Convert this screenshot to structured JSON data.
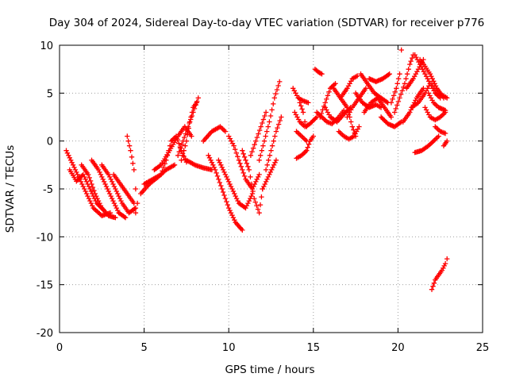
{
  "chart_data": {
    "type": "scatter",
    "title": "Day 304 of 2024, Sidereal Day-to-day VTEC variation (SDTVAR) for receiver p776",
    "xlabel": "GPS time / hours",
    "ylabel": "SDTVAR / TECUs",
    "xlim": [
      0,
      25
    ],
    "ylim": [
      -20,
      10
    ],
    "xticks": [
      0,
      5,
      10,
      15,
      20,
      25
    ],
    "yticks": [
      -20,
      -15,
      -10,
      -5,
      0,
      5,
      10
    ],
    "grid": true,
    "marker": "+",
    "color": "#ff0000",
    "series": [
      {
        "tracks": [
          [
            [
              0.4,
              -1.0
            ],
            [
              0.8,
              -2.5
            ],
            [
              1.2,
              -4.0
            ],
            [
              1.6,
              -5.5
            ],
            [
              2.0,
              -7.0
            ],
            [
              2.5,
              -7.8
            ],
            [
              3.0,
              -7.5
            ]
          ],
          [
            [
              0.6,
              -3.0
            ],
            [
              1.0,
              -4.2
            ],
            [
              1.4,
              -3.5
            ],
            [
              1.8,
              -5.0
            ],
            [
              2.2,
              -6.5
            ],
            [
              2.6,
              -7.2
            ]
          ],
          [
            [
              1.3,
              -2.5
            ],
            [
              1.7,
              -3.5
            ],
            [
              2.1,
              -5.5
            ],
            [
              2.5,
              -7.0
            ],
            [
              2.9,
              -7.8
            ],
            [
              3.3,
              -8.0
            ]
          ],
          [
            [
              1.9,
              -2.0
            ],
            [
              2.3,
              -3.0
            ],
            [
              2.7,
              -4.5
            ],
            [
              3.1,
              -6.0
            ],
            [
              3.5,
              -7.5
            ],
            [
              3.9,
              -8.0
            ]
          ],
          [
            [
              2.5,
              -2.5
            ],
            [
              2.9,
              -3.5
            ],
            [
              3.3,
              -5.0
            ],
            [
              3.7,
              -6.5
            ],
            [
              4.1,
              -7.5
            ],
            [
              4.5,
              -7.0
            ]
          ],
          [
            [
              3.2,
              -3.5
            ],
            [
              3.6,
              -4.5
            ],
            [
              4.0,
              -5.5
            ],
            [
              4.4,
              -6.5
            ]
          ],
          [
            [
              4.0,
              0.5
            ],
            [
              4.2,
              -1.0
            ],
            [
              4.4,
              -3.0
            ],
            [
              4.5,
              -5.0
            ],
            [
              4.6,
              -6.5
            ],
            [
              4.5,
              -7.5
            ]
          ]
        ]
      },
      {
        "tracks": [
          [
            [
              4.8,
              -5.5
            ],
            [
              5.3,
              -4.5
            ],
            [
              5.8,
              -3.8
            ],
            [
              6.3,
              -3.0
            ],
            [
              6.8,
              -2.5
            ]
          ],
          [
            [
              5.0,
              -4.5
            ],
            [
              5.5,
              -4.0
            ],
            [
              6.0,
              -3.5
            ],
            [
              6.3,
              -2.0
            ],
            [
              6.6,
              0.0
            ],
            [
              6.9,
              0.5
            ],
            [
              7.2,
              -1.0
            ],
            [
              7.5,
              -2.2
            ]
          ],
          [
            [
              5.6,
              -3.0
            ],
            [
              6.0,
              -2.5
            ],
            [
              6.5,
              -1.0
            ],
            [
              7.0,
              0.5
            ],
            [
              7.4,
              1.5
            ],
            [
              7.8,
              0.5
            ]
          ],
          [
            [
              7.0,
              -1.5
            ],
            [
              7.3,
              0.0
            ],
            [
              7.6,
              1.5
            ],
            [
              7.9,
              3.0
            ],
            [
              8.2,
              4.5
            ]
          ],
          [
            [
              7.2,
              -2.0
            ],
            [
              7.5,
              0.0
            ],
            [
              7.7,
              2.0
            ],
            [
              7.9,
              3.5
            ],
            [
              8.1,
              4.0
            ]
          ],
          [
            [
              7.5,
              -2.0
            ],
            [
              8.0,
              -2.5
            ],
            [
              8.5,
              -2.8
            ],
            [
              9.0,
              -3.0
            ]
          ],
          [
            [
              8.5,
              0.0
            ],
            [
              9.0,
              1.0
            ],
            [
              9.5,
              1.5
            ],
            [
              9.8,
              1.0
            ]
          ],
          [
            [
              8.8,
              -1.5
            ],
            [
              9.2,
              -3.0
            ],
            [
              9.6,
              -5.0
            ],
            [
              10.0,
              -7.0
            ],
            [
              10.4,
              -8.5
            ],
            [
              10.8,
              -9.3
            ]
          ],
          [
            [
              9.4,
              -2.0
            ],
            [
              9.8,
              -3.5
            ],
            [
              10.2,
              -5.0
            ],
            [
              10.6,
              -6.5
            ],
            [
              11.0,
              -7.0
            ],
            [
              11.4,
              -5.5
            ]
          ],
          [
            [
              10.0,
              0.5
            ],
            [
              10.3,
              -0.5
            ],
            [
              10.6,
              -2.0
            ],
            [
              11.0,
              -4.0
            ],
            [
              11.4,
              -5.0
            ],
            [
              11.8,
              -3.5
            ]
          ],
          [
            [
              10.8,
              -1.0
            ],
            [
              11.2,
              -3.0
            ],
            [
              11.5,
              -6.0
            ],
            [
              11.8,
              -7.5
            ],
            [
              12.0,
              -5.0
            ]
          ],
          [
            [
              11.3,
              -1.5
            ],
            [
              11.6,
              0.0
            ],
            [
              11.9,
              1.5
            ],
            [
              12.2,
              3.0
            ]
          ],
          [
            [
              11.8,
              -2.0
            ],
            [
              12.1,
              0.0
            ],
            [
              12.4,
              2.0
            ],
            [
              12.7,
              4.5
            ],
            [
              13.0,
              6.2
            ]
          ],
          [
            [
              12.2,
              -3.0
            ],
            [
              12.5,
              -1.0
            ],
            [
              12.8,
              1.0
            ],
            [
              13.1,
              2.5
            ]
          ],
          [
            [
              12.0,
              -5.0
            ],
            [
              12.4,
              -3.5
            ],
            [
              12.8,
              -2.0
            ]
          ]
        ]
      },
      {
        "tracks": [
          [
            [
              14.0,
              -1.8
            ],
            [
              14.3,
              -1.5
            ],
            [
              14.6,
              -1.0
            ],
            [
              14.8,
              0.0
            ],
            [
              15.0,
              0.5
            ]
          ],
          [
            [
              14.2,
              4.0
            ],
            [
              14.4,
              3.0
            ],
            [
              14.5,
              2.0
            ],
            [
              14.6,
              1.5
            ]
          ],
          [
            [
              13.8,
              5.5
            ],
            [
              14.1,
              4.5
            ],
            [
              14.4,
              4.2
            ],
            [
              14.7,
              4.0
            ]
          ],
          [
            [
              13.9,
              3.0
            ],
            [
              14.2,
              2.0
            ],
            [
              14.5,
              1.5
            ],
            [
              14.8,
              1.8
            ],
            [
              15.2,
              2.5
            ]
          ],
          [
            [
              14.0,
              1.0
            ],
            [
              14.3,
              0.5
            ],
            [
              14.6,
              0.0
            ]
          ],
          [
            [
              15.1,
              7.5
            ],
            [
              15.3,
              7.2
            ],
            [
              15.5,
              7.0
            ]
          ],
          [
            [
              15.2,
              3.0
            ],
            [
              15.5,
              2.5
            ],
            [
              15.8,
              2.0
            ],
            [
              16.1,
              1.8
            ],
            [
              16.5,
              2.5
            ],
            [
              16.8,
              3.2
            ]
          ],
          [
            [
              15.4,
              2.5
            ],
            [
              15.7,
              4.0
            ],
            [
              16.0,
              5.5
            ],
            [
              16.3,
              6.0
            ]
          ],
          [
            [
              15.7,
              3.5
            ],
            [
              16.0,
              2.5
            ],
            [
              16.4,
              2.0
            ],
            [
              16.8,
              2.8
            ],
            [
              17.2,
              3.5
            ]
          ],
          [
            [
              16.2,
              5.5
            ],
            [
              16.6,
              4.5
            ],
            [
              17.0,
              3.5
            ],
            [
              17.3,
              1.5
            ],
            [
              17.5,
              0.5
            ]
          ],
          [
            [
              16.5,
              1.0
            ],
            [
              16.8,
              0.5
            ],
            [
              17.1,
              0.2
            ],
            [
              17.4,
              0.5
            ],
            [
              17.7,
              1.5
            ]
          ],
          [
            [
              16.6,
              4.5
            ],
            [
              17.0,
              5.5
            ],
            [
              17.3,
              6.5
            ],
            [
              17.6,
              6.8
            ]
          ],
          [
            [
              17.0,
              2.5
            ],
            [
              17.3,
              3.5
            ],
            [
              17.7,
              4.5
            ],
            [
              18.1,
              5.5
            ]
          ],
          [
            [
              17.5,
              5.0
            ],
            [
              17.9,
              4.0
            ],
            [
              18.3,
              3.5
            ],
            [
              18.7,
              3.8
            ],
            [
              19.0,
              3.5
            ]
          ],
          [
            [
              17.8,
              7.0
            ],
            [
              18.2,
              6.0
            ],
            [
              18.6,
              5.0
            ],
            [
              19.0,
              4.5
            ],
            [
              19.4,
              4.0
            ]
          ],
          [
            [
              18.0,
              3.0
            ],
            [
              18.4,
              4.0
            ],
            [
              18.8,
              4.5
            ],
            [
              19.2,
              3.5
            ],
            [
              19.6,
              2.5
            ]
          ],
          [
            [
              18.3,
              6.5
            ],
            [
              18.7,
              6.2
            ],
            [
              19.1,
              6.5
            ],
            [
              19.5,
              7.0
            ]
          ],
          [
            [
              19.0,
              2.5
            ],
            [
              19.4,
              1.8
            ],
            [
              19.8,
              1.5
            ],
            [
              20.2,
              2.0
            ]
          ],
          [
            [
              19.6,
              4.0
            ],
            [
              19.9,
              5.5
            ],
            [
              20.1,
              7.0
            ],
            [
              20.2,
              9.5
            ]
          ],
          [
            [
              19.8,
              3.0
            ],
            [
              20.1,
              4.5
            ],
            [
              20.4,
              6.0
            ],
            [
              20.7,
              8.0
            ],
            [
              20.9,
              9.0
            ]
          ],
          [
            [
              20.3,
              2.0
            ],
            [
              20.7,
              3.0
            ],
            [
              21.1,
              4.5
            ],
            [
              21.5,
              5.5
            ]
          ],
          [
            [
              20.5,
              5.5
            ],
            [
              20.9,
              6.5
            ],
            [
              21.2,
              7.5
            ],
            [
              21.5,
              8.5
            ]
          ],
          [
            [
              20.8,
              3.5
            ],
            [
              21.2,
              4.0
            ],
            [
              21.6,
              5.0
            ],
            [
              21.9,
              6.0
            ]
          ],
          [
            [
              21.0,
              9.0
            ],
            [
              21.3,
              8.0
            ],
            [
              21.6,
              7.0
            ],
            [
              21.9,
              6.0
            ],
            [
              22.2,
              5.0
            ],
            [
              22.5,
              4.5
            ]
          ],
          [
            [
              21.3,
              8.5
            ],
            [
              21.6,
              7.8
            ],
            [
              21.9,
              7.0
            ],
            [
              22.3,
              5.5
            ],
            [
              22.7,
              4.5
            ]
          ],
          [
            [
              21.6,
              3.5
            ],
            [
              21.9,
              2.5
            ],
            [
              22.2,
              2.2
            ],
            [
              22.5,
              2.5
            ],
            [
              22.8,
              3.0
            ]
          ],
          [
            [
              21.8,
              5.0
            ],
            [
              22.1,
              4.0
            ],
            [
              22.4,
              3.5
            ],
            [
              22.8,
              3.2
            ]
          ],
          [
            [
              22.0,
              6.0
            ],
            [
              22.3,
              5.0
            ],
            [
              22.6,
              4.8
            ],
            [
              22.9,
              4.5
            ]
          ],
          [
            [
              21.0,
              -1.2
            ],
            [
              21.4,
              -1.0
            ],
            [
              21.8,
              -0.5
            ],
            [
              22.1,
              0.0
            ],
            [
              22.4,
              0.5
            ]
          ],
          [
            [
              22.2,
              1.5
            ],
            [
              22.5,
              1.0
            ],
            [
              22.8,
              0.8
            ],
            [
              22.9,
              0.0
            ],
            [
              22.7,
              -0.5
            ]
          ],
          [
            [
              22.0,
              -15.5
            ],
            [
              22.2,
              -14.5
            ],
            [
              22.4,
              -14.0
            ],
            [
              22.6,
              -13.5
            ],
            [
              22.8,
              -12.8
            ],
            [
              22.9,
              -12.3
            ]
          ]
        ]
      }
    ]
  }
}
